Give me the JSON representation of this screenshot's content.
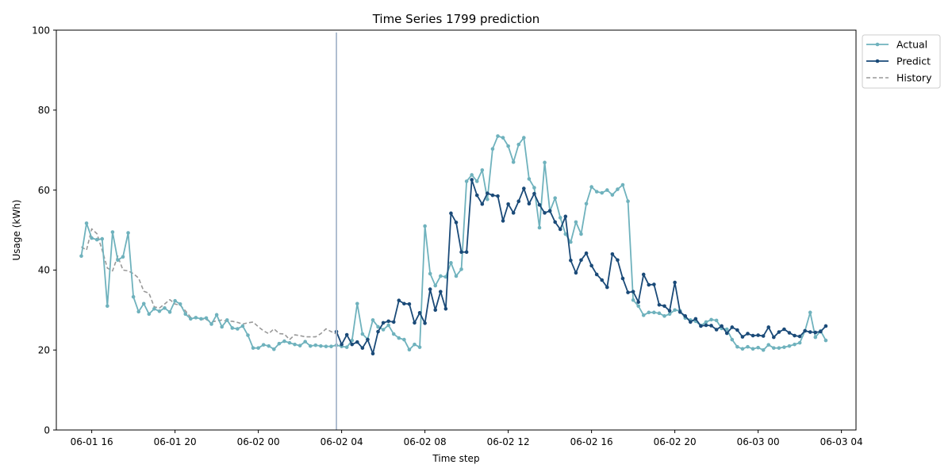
{
  "chart_data": {
    "type": "line",
    "title": "Time Series 1799 prediction",
    "xlabel": "Time step",
    "ylabel": "Usage (kWh)",
    "ylim": [
      0,
      100
    ],
    "xlim": [
      "2025-06-01 14:18",
      "2025-06-03 04:42"
    ],
    "x_ticks": [
      {
        "x": "2025-06-01 16:00",
        "label": "06-01 16"
      },
      {
        "x": "2025-06-01 20:00",
        "label": "06-01 20"
      },
      {
        "x": "2025-06-02 00:00",
        "label": "06-02 00"
      },
      {
        "x": "2025-06-02 04:00",
        "label": "06-02 04"
      },
      {
        "x": "2025-06-02 08:00",
        "label": "06-02 08"
      },
      {
        "x": "2025-06-02 12:00",
        "label": "06-02 12"
      },
      {
        "x": "2025-06-02 16:00",
        "label": "06-02 16"
      },
      {
        "x": "2025-06-02 20:00",
        "label": "06-02 20"
      },
      {
        "x": "2025-06-03 00:00",
        "label": "06-03 00"
      },
      {
        "x": "2025-06-03 04:00",
        "label": "06-03 04"
      }
    ],
    "y_ticks": [
      0,
      20,
      40,
      60,
      80,
      100
    ],
    "interval_minutes": 15,
    "vline_x": "2025-06-02 03:45",
    "legend_position": "outside-top-right",
    "grid": false,
    "series": [
      {
        "name": "Actual",
        "color": "#6fb2bd",
        "style": "solid-marker",
        "start": "2025-06-01 15:30",
        "values": [
          43.5,
          51.7,
          48,
          47.6,
          47.8,
          31,
          49.5,
          42.5,
          43.3,
          49.3,
          33.3,
          29.6,
          31.6,
          29,
          30.3,
          29.7,
          30.5,
          29.5,
          32.3,
          31.5,
          29,
          27.8,
          28.1,
          27.8,
          28,
          26.5,
          28.8,
          25.8,
          27.5,
          25.5,
          25.3,
          26,
          23.7,
          20.5,
          20.5,
          21.3,
          21,
          20.2,
          21.6,
          22.2,
          21.8,
          21.4,
          21.1,
          22.1,
          21,
          21.2,
          21,
          20.9,
          20.9,
          21.2,
          20.9,
          20.7,
          22.4,
          31.6,
          24,
          22.7,
          27.5,
          25.8,
          25.1,
          26.2,
          24,
          23,
          22.6,
          20.1,
          21.4,
          20.7,
          51,
          39.1,
          36.1,
          38.5,
          38.3,
          41.8,
          38.5,
          40.2,
          62.2,
          63.8,
          62.2,
          65,
          57.7,
          70.3,
          73.5,
          73.1,
          71,
          67,
          71.4,
          73.1,
          62.8,
          60.6,
          50.6,
          66.9,
          54.7,
          58,
          53.1,
          49,
          47,
          52,
          49,
          56.6,
          60.8,
          59.6,
          59.3,
          60,
          58.8,
          60.2,
          61.3,
          57.2,
          32.5,
          31,
          28.7,
          29.4,
          29.4,
          29.2,
          28.5,
          29,
          30,
          29.8,
          28,
          27.5,
          27.2,
          26.1,
          27,
          27.6,
          27.4,
          25.4,
          25.2,
          22.6,
          20.8,
          20.3,
          20.8,
          20.3,
          20.6,
          20,
          21.3,
          20.5,
          20.5,
          20.7,
          21,
          21.4,
          21.8,
          24.8,
          29.4,
          23.2,
          24.8,
          22.4
        ]
      },
      {
        "name": "Predict",
        "color": "#1a4a78",
        "style": "solid-marker",
        "start": "2025-06-02 03:45",
        "values": [
          24.6,
          21.4,
          23.8,
          21.4,
          22,
          20.5,
          22.6,
          19.1,
          24.6,
          26.8,
          27.2,
          27,
          32.4,
          31.6,
          31.5,
          26.8,
          29.3,
          26.7,
          35.2,
          30,
          34.6,
          30.3,
          54.2,
          51.9,
          44.5,
          44.5,
          62.6,
          58.7,
          56.5,
          59.2,
          58.7,
          58.5,
          52.3,
          56.5,
          54.3,
          57.2,
          60.4,
          56.6,
          59.1,
          56.3,
          54.3,
          54.8,
          52,
          50.2,
          53.4,
          42.4,
          39.3,
          42.5,
          44.2,
          41.1,
          38.9,
          37.5,
          35.7,
          44,
          42.5,
          37.9,
          34.4,
          34.6,
          32,
          38.9,
          36.3,
          36.4,
          31.3,
          31,
          29.8,
          36.9,
          29.5,
          28.5,
          27,
          27.8,
          26,
          26.2,
          26.1,
          25.1,
          26,
          24.2,
          25.7,
          25,
          23.3,
          24.1,
          23.6,
          23.7,
          23.5,
          25.7,
          23.2,
          24.5,
          25.2,
          24.3,
          23.6,
          23.4,
          24.8,
          24.5,
          24.4,
          24.6,
          26
        ]
      },
      {
        "name": "History",
        "color": "#999999",
        "style": "dashed",
        "start": "2025-06-01 15:30",
        "values": [
          45.8,
          45,
          50.3,
          49.1,
          45,
          40.5,
          39.8,
          43.5,
          40,
          39.8,
          39.1,
          38,
          34.7,
          34.2,
          30.8,
          30.5,
          31.5,
          32.6,
          31.5,
          31.2,
          29.8,
          28.2,
          28,
          27.7,
          27.6,
          27,
          27.3,
          27.5,
          27.2,
          27.2,
          26.9,
          26.5,
          26.8,
          27,
          25.8,
          24.8,
          24.1,
          25.3,
          24.1,
          24,
          22.6,
          23.8,
          23.6,
          23.3,
          23.3,
          23.3,
          24.1,
          25.3,
          24.6,
          24
        ]
      }
    ]
  }
}
